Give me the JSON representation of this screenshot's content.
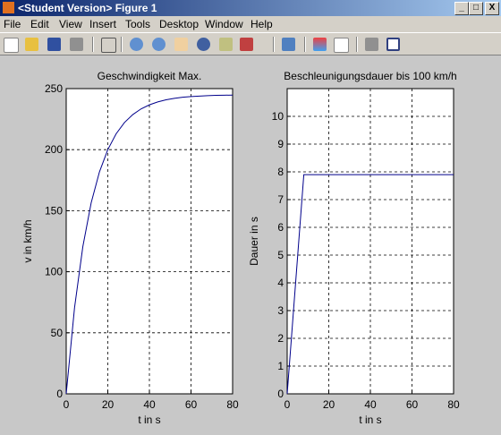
{
  "window_title": "<Student Version> Figure 1",
  "menu": [
    "File",
    "Edit",
    "View",
    "Insert",
    "Tools",
    "Desktop",
    "Window",
    "Help"
  ],
  "chart_data": [
    {
      "type": "line",
      "title": "Geschwindigkeit Max.",
      "x_label": "t in s",
      "y_label": "v in km/h",
      "x": [
        0,
        4,
        8,
        12,
        16,
        20,
        24,
        28,
        32,
        36,
        40,
        44,
        48,
        52,
        56,
        60,
        64,
        68,
        72,
        76,
        80
      ],
      "values": [
        0,
        70.4,
        120.6,
        156.4,
        181.9,
        200.0,
        213.0,
        222.2,
        228.7,
        233.4,
        236.7,
        239.1,
        240.8,
        242.0,
        242.9,
        243.5,
        243.9,
        244.2,
        244.5,
        244.6,
        244.7
      ],
      "color": "#00008b",
      "xlim": [
        0,
        80
      ],
      "ylim": [
        0,
        250
      ],
      "xticks": [
        0,
        20,
        40,
        60,
        80
      ],
      "yticks": [
        0,
        50,
        100,
        150,
        200,
        250
      ],
      "grid": true
    },
    {
      "type": "line",
      "title": "Beschleunigungsdauer bis 100 km/h",
      "x_label": "t in s",
      "y_label": "Dauer in s",
      "x": [
        0,
        8,
        80
      ],
      "values": [
        0,
        7.9,
        7.9
      ],
      "color": "#00008b",
      "xlim": [
        0,
        80
      ],
      "ylim": [
        0,
        11
      ],
      "xticks": [
        0,
        20,
        40,
        60,
        80
      ],
      "yticks": [
        0,
        1,
        2,
        3,
        4,
        5,
        6,
        7,
        8,
        9,
        10
      ],
      "grid": true
    }
  ]
}
